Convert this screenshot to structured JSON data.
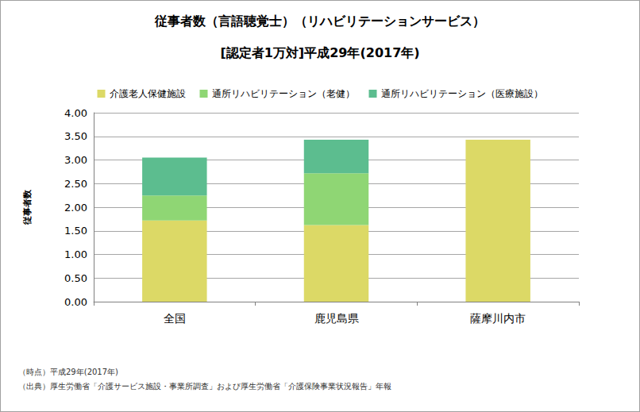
{
  "chart_data": {
    "type": "bar",
    "title": "従事者数（言語聴覚士）（リハビリテーションサービス）",
    "subtitle": "[認定者1万対]平成29年(2017年)",
    "y_label": "従事者数",
    "categories": [
      "全国",
      "鹿児島県",
      "薩摩川内市"
    ],
    "series": [
      {
        "name": "介護老人保健施設",
        "color": "#dcd966",
        "values": [
          1.72,
          1.62,
          3.43
        ]
      },
      {
        "name": "通所リハビリテーション（老健）",
        "color": "#8fd674",
        "values": [
          0.53,
          1.1,
          0
        ]
      },
      {
        "name": "通所リハビリテーション（医療施設）",
        "color": "#5cbd8f",
        "values": [
          0.8,
          0.71,
          0
        ]
      }
    ],
    "stacked": true,
    "ylim": [
      0,
      4
    ],
    "yticks": [
      {
        "value": 0,
        "label": "0.00"
      },
      {
        "value": 0.5,
        "label": "0.50"
      },
      {
        "value": 1,
        "label": "1.00"
      },
      {
        "value": 1.5,
        "label": "1.50"
      },
      {
        "value": 2,
        "label": "2.00"
      },
      {
        "value": 2.5,
        "label": "2.50"
      },
      {
        "value": 3,
        "label": "3.00"
      },
      {
        "value": 3.5,
        "label": "3.50"
      },
      {
        "value": 4,
        "label": "4.00"
      }
    ],
    "grid": true,
    "legend": "top",
    "annotations": [
      "（時点）平成29年(2017年)",
      "（出典）厚生労働省「介護サービス施設・事業所調査」および厚生労働省「介護保険事業状況報告」年報"
    ]
  }
}
